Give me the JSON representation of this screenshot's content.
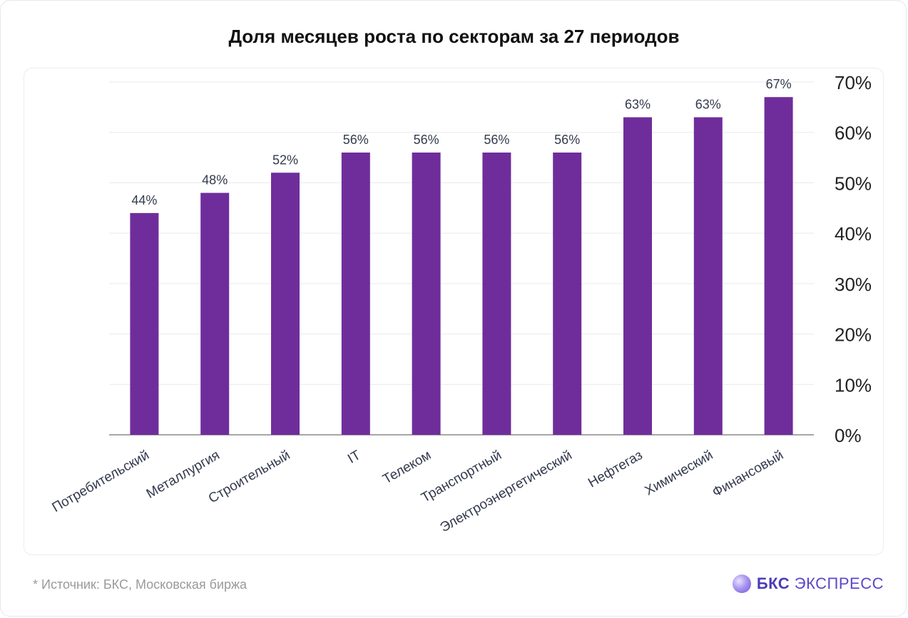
{
  "header": {
    "title": "Доля месяцев роста по секторам за 27 периодов"
  },
  "footer": {
    "source": "*  Источник: БКС, Московская биржа",
    "logo_bold": "БКС",
    "logo_rest": "ЭКСПРЕСС",
    "logo_icon": "bcs-sphere-icon"
  },
  "colors": {
    "bar": "#6f2d9b",
    "grid": "#e9e9ee",
    "axis": "#8a8a8a",
    "label": "#333a4d",
    "tick": "#222222"
  },
  "chart_data": {
    "type": "bar",
    "title": "Доля месяцев роста по секторам за 27 периодов",
    "categories": [
      "Потребительский",
      "Металлургия",
      "Строительный",
      "IT",
      "Телеком",
      "Транспортный",
      "Электроэнергетический",
      "Нефтегаз",
      "Химический",
      "Финансовый"
    ],
    "values": [
      44,
      48,
      52,
      56,
      56,
      56,
      56,
      63,
      63,
      67
    ],
    "data_labels": [
      "44%",
      "48%",
      "52%",
      "56%",
      "56%",
      "56%",
      "56%",
      "63%",
      "63%",
      "67%"
    ],
    "y_ticks": [
      "0%",
      "10%",
      "20%",
      "30%",
      "40%",
      "50%",
      "60%",
      "70%"
    ],
    "ylim": [
      0,
      70
    ],
    "y_axis_position": "right",
    "grid": true,
    "xlabel": "",
    "ylabel": ""
  }
}
